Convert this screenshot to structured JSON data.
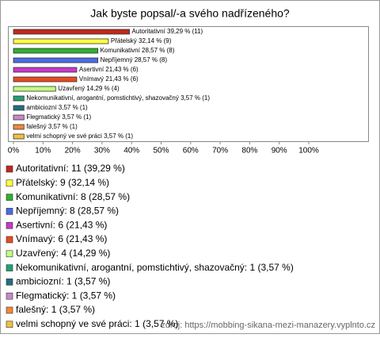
{
  "chart_data": {
    "type": "bar",
    "orientation": "horizontal",
    "title": "Jak byste popsal/-a svého nadřízeného?",
    "categories": [
      "Autoritativní: 11 (39,29 %)",
      "Přátelský: 9 (32,14 %)",
      "Komunikativní: 8 (28,57 %)",
      "Nepříjemný: 8 (28,57 %)",
      "Asertivní: 6 (21,43 %)",
      "Vnímavý: 6 (21,43 %)",
      "Uzavřený: 4 (14,29 %)",
      "Nekomunikativní, arogantní, pomstichtivý, shazovačný: 1 (3,57 %)",
      "ambiciozní: 1 (3,57 %)",
      "Flegmatický: 1 (3,57 %)",
      "falešný: 1 (3,57 %)",
      "velmi schopný ve své práci: 1 (3,57 %)"
    ],
    "values": [
      39.29,
      32.14,
      28.57,
      28.57,
      21.43,
      21.43,
      14.29,
      3.57,
      3.57,
      3.57,
      3.57,
      3.57
    ],
    "value_labels": [
      "Autoritativní 39,29 % (11)",
      "Přátelský 32,14 % (9)",
      "Komunikativní 28,57 % (8)",
      "Nepříjemný 28,57 % (8)",
      "Asertivní 21,43 % (6)",
      "Vnímavý 21,43 % (6)",
      "Uzavřený 14,29 % (4)",
      "Nekomunikativní, arogantní, pomstichtivý, shazovačný 3,57 % (1)",
      "ambiciozní 3,57 % (1)",
      "Flegmatický 3,57 % (1)",
      "falešný 3,57 % (1)",
      "velmi schopný ve své práci 3,57 % (1)"
    ],
    "colors": [
      "#c0281c",
      "#ffff40",
      "#30b030",
      "#4a6ae8",
      "#c838c8",
      "#e84a20",
      "#c0ff80",
      "#20a070",
      "#207080",
      "#c888c8",
      "#f08838",
      "#f0c040"
    ],
    "xlim": [
      0,
      100
    ],
    "xticks": [
      {
        "value": 0,
        "label": "0%"
      },
      {
        "value": 10,
        "label": "10%"
      },
      {
        "value": 20,
        "label": "20%"
      },
      {
        "value": 30,
        "label": "30%"
      },
      {
        "value": 40,
        "label": "40%"
      },
      {
        "value": 50,
        "label": "50%"
      },
      {
        "value": 60,
        "label": "60%"
      },
      {
        "value": 70,
        "label": "70%"
      },
      {
        "value": 80,
        "label": "80%"
      },
      {
        "value": 90,
        "label": "90%"
      },
      {
        "value": 100,
        "label": "100%"
      }
    ],
    "source": "zdroj: https://mobbing-sikana-mezi-manazery.vyplnto.cz"
  }
}
